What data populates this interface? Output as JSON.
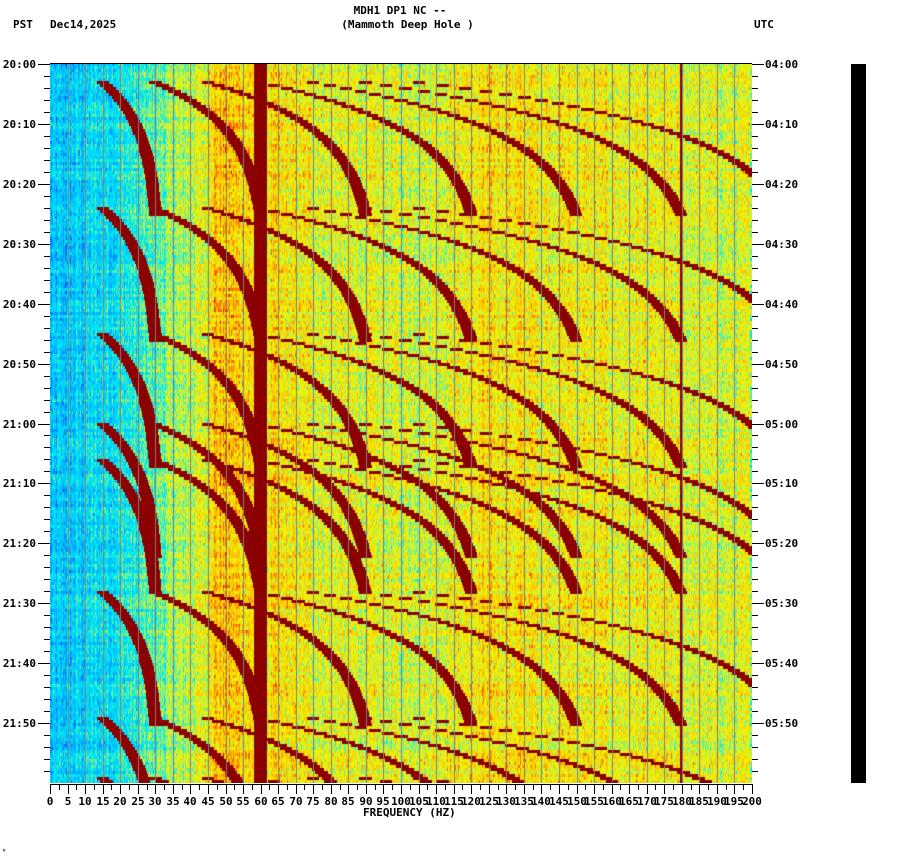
{
  "header": {
    "station": "MDH1 DP1 NC --",
    "location": "(Mammoth Deep Hole )",
    "left_timezone": "PST",
    "date": "Dec14,2025",
    "right_timezone": "UTC"
  },
  "footer": {
    "corner_mark": "ᴺ"
  },
  "colors": {
    "background": "#ffffff",
    "axis": "#000000",
    "gridline": "#808080",
    "colormap": [
      "#0050ff",
      "#0090ff",
      "#00c8ff",
      "#00e8f0",
      "#60f0a0",
      "#c8f040",
      "#f0f000",
      "#ffc000",
      "#ff6000",
      "#e00000",
      "#8b0000"
    ]
  },
  "chart_data": {
    "type": "heatmap",
    "title": "MDH1 DP1 NC -- (Mammoth Deep Hole )",
    "xlabel": "FREQUENCY (HZ)",
    "ylabel_left": "PST",
    "ylabel_right": "UTC",
    "xlim": [
      0,
      200
    ],
    "x_ticks": [
      "0",
      "5",
      "10",
      "15",
      "20",
      "25",
      "30",
      "35",
      "40",
      "45",
      "50",
      "55",
      "60",
      "65",
      "70",
      "75",
      "80",
      "85",
      "90",
      "95",
      "100",
      "105",
      "110",
      "115",
      "120",
      "125",
      "130",
      "135",
      "140",
      "145",
      "150",
      "155",
      "160",
      "165",
      "170",
      "175",
      "180",
      "185",
      "190",
      "195",
      "200"
    ],
    "y_ticks_left": [
      "20:00",
      "20:10",
      "20:20",
      "20:30",
      "20:40",
      "20:50",
      "21:00",
      "21:10",
      "21:20",
      "21:30",
      "21:40",
      "21:50"
    ],
    "y_ticks_right": [
      "04:00",
      "04:10",
      "04:20",
      "04:30",
      "04:40",
      "04:50",
      "05:00",
      "05:10",
      "05:20",
      "05:30",
      "05:40",
      "05:50"
    ],
    "time_range_minutes": 120,
    "minor_tick_minutes": 2,
    "persistent_lines_hz": [
      60,
      180
    ],
    "gliding_tone_sweep_starts_minutes": [
      3,
      24,
      45,
      60,
      66,
      88,
      109,
      119
    ],
    "description": "Spectrogram with low noise below ~25 Hz (blue), strong energy 40-125 Hz (yellow-red), repeated upward-gliding harmonic tones (dark red arcs) restarting roughly every 20 minutes, constant strong line at 60 Hz and weak line at 180 Hz"
  }
}
